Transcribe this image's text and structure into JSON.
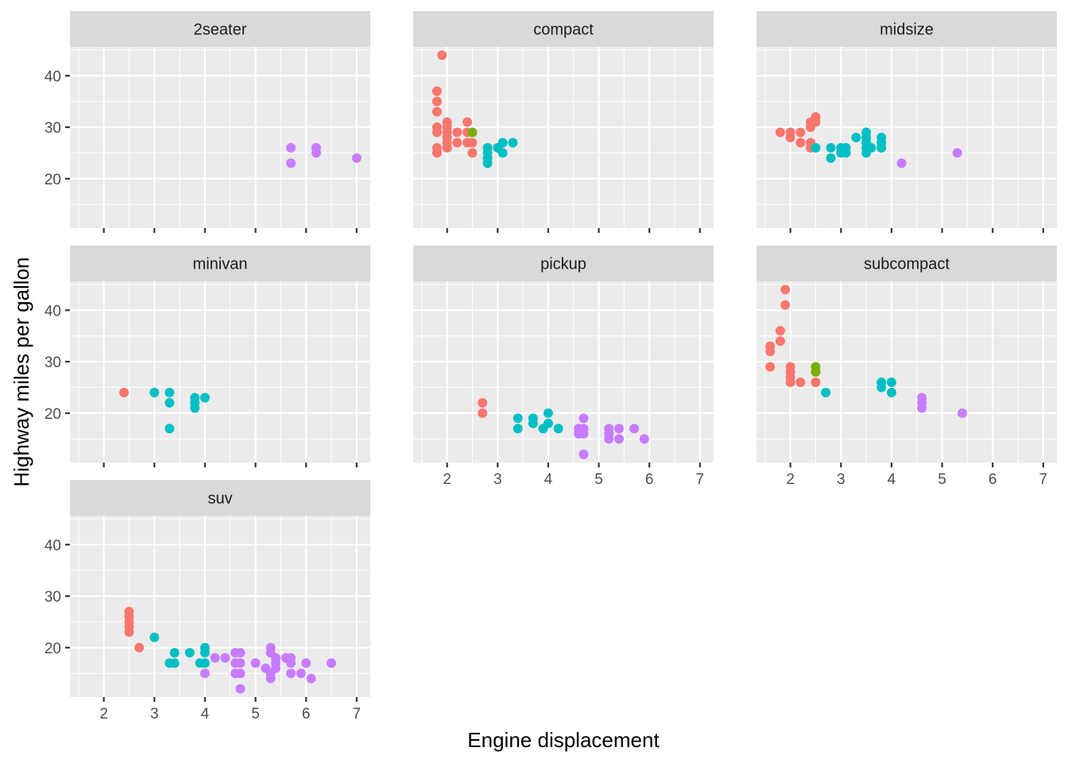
{
  "chart_data": {
    "type": "scatter",
    "facet_by": "class",
    "xlabel": "Engine displacement",
    "ylabel": "Highway miles per gallon",
    "xlim": [
      1.33,
      7.27
    ],
    "ylim": [
      10.4,
      45.6
    ],
    "x_ticks": [
      2,
      3,
      4,
      5,
      6,
      7
    ],
    "y_ticks": [
      20,
      30,
      40
    ],
    "grid": true,
    "legend": "none",
    "color_groups": {
      "4cyl": "#F8766D",
      "5cyl": "#7CAE00",
      "6cyl": "#00BFC4",
      "8cyl": "#C77CFF"
    },
    "panels": [
      {
        "name": "2seater",
        "points": [
          {
            "x": 5.7,
            "y": 26,
            "g": "8cyl"
          },
          {
            "x": 5.7,
            "y": 23,
            "g": "8cyl"
          },
          {
            "x": 6.2,
            "y": 26,
            "g": "8cyl"
          },
          {
            "x": 6.2,
            "y": 25,
            "g": "8cyl"
          },
          {
            "x": 7.0,
            "y": 24,
            "g": "8cyl"
          }
        ]
      },
      {
        "name": "compact",
        "points": [
          {
            "x": 1.9,
            "y": 44,
            "g": "4cyl"
          },
          {
            "x": 1.8,
            "y": 37,
            "g": "4cyl"
          },
          {
            "x": 1.8,
            "y": 35,
            "g": "4cyl"
          },
          {
            "x": 1.8,
            "y": 33,
            "g": "4cyl"
          },
          {
            "x": 1.8,
            "y": 30,
            "g": "4cyl"
          },
          {
            "x": 1.8,
            "y": 29,
            "g": "4cyl"
          },
          {
            "x": 1.8,
            "y": 26,
            "g": "4cyl"
          },
          {
            "x": 1.8,
            "y": 25,
            "g": "4cyl"
          },
          {
            "x": 2.0,
            "y": 31,
            "g": "4cyl"
          },
          {
            "x": 2.0,
            "y": 30,
            "g": "4cyl"
          },
          {
            "x": 2.0,
            "y": 29,
            "g": "4cyl"
          },
          {
            "x": 2.0,
            "y": 28,
            "g": "4cyl"
          },
          {
            "x": 2.0,
            "y": 27,
            "g": "4cyl"
          },
          {
            "x": 2.0,
            "y": 26,
            "g": "4cyl"
          },
          {
            "x": 2.2,
            "y": 29,
            "g": "4cyl"
          },
          {
            "x": 2.2,
            "y": 27,
            "g": "4cyl"
          },
          {
            "x": 2.4,
            "y": 31,
            "g": "4cyl"
          },
          {
            "x": 2.4,
            "y": 29,
            "g": "4cyl"
          },
          {
            "x": 2.4,
            "y": 27,
            "g": "4cyl"
          },
          {
            "x": 2.5,
            "y": 27,
            "g": "4cyl"
          },
          {
            "x": 2.5,
            "y": 25,
            "g": "4cyl"
          },
          {
            "x": 2.5,
            "y": 29,
            "g": "5cyl"
          },
          {
            "x": 2.8,
            "y": 26,
            "g": "6cyl"
          },
          {
            "x": 2.8,
            "y": 25,
            "g": "6cyl"
          },
          {
            "x": 2.8,
            "y": 24,
            "g": "6cyl"
          },
          {
            "x": 2.8,
            "y": 23,
            "g": "6cyl"
          },
          {
            "x": 3.0,
            "y": 26,
            "g": "6cyl"
          },
          {
            "x": 3.1,
            "y": 27,
            "g": "6cyl"
          },
          {
            "x": 3.1,
            "y": 25,
            "g": "6cyl"
          },
          {
            "x": 3.3,
            "y": 27,
            "g": "6cyl"
          }
        ]
      },
      {
        "name": "midsize",
        "points": [
          {
            "x": 1.8,
            "y": 29,
            "g": "4cyl"
          },
          {
            "x": 2.0,
            "y": 29,
            "g": "4cyl"
          },
          {
            "x": 2.0,
            "y": 28,
            "g": "4cyl"
          },
          {
            "x": 2.2,
            "y": 29,
            "g": "4cyl"
          },
          {
            "x": 2.2,
            "y": 27,
            "g": "4cyl"
          },
          {
            "x": 2.4,
            "y": 31,
            "g": "4cyl"
          },
          {
            "x": 2.4,
            "y": 30,
            "g": "4cyl"
          },
          {
            "x": 2.4,
            "y": 27,
            "g": "4cyl"
          },
          {
            "x": 2.4,
            "y": 26,
            "g": "4cyl"
          },
          {
            "x": 2.5,
            "y": 32,
            "g": "4cyl"
          },
          {
            "x": 2.5,
            "y": 31,
            "g": "4cyl"
          },
          {
            "x": 2.5,
            "y": 26,
            "g": "6cyl"
          },
          {
            "x": 2.8,
            "y": 26,
            "g": "6cyl"
          },
          {
            "x": 2.8,
            "y": 24,
            "g": "6cyl"
          },
          {
            "x": 3.0,
            "y": 26,
            "g": "6cyl"
          },
          {
            "x": 3.0,
            "y": 25,
            "g": "6cyl"
          },
          {
            "x": 3.1,
            "y": 26,
            "g": "6cyl"
          },
          {
            "x": 3.1,
            "y": 25,
            "g": "6cyl"
          },
          {
            "x": 3.3,
            "y": 28,
            "g": "6cyl"
          },
          {
            "x": 3.5,
            "y": 29,
            "g": "6cyl"
          },
          {
            "x": 3.5,
            "y": 28,
            "g": "6cyl"
          },
          {
            "x": 3.5,
            "y": 27,
            "g": "6cyl"
          },
          {
            "x": 3.5,
            "y": 26,
            "g": "6cyl"
          },
          {
            "x": 3.5,
            "y": 25,
            "g": "6cyl"
          },
          {
            "x": 3.6,
            "y": 26,
            "g": "6cyl"
          },
          {
            "x": 3.8,
            "y": 28,
            "g": "6cyl"
          },
          {
            "x": 3.8,
            "y": 27,
            "g": "6cyl"
          },
          {
            "x": 3.8,
            "y": 26,
            "g": "6cyl"
          },
          {
            "x": 4.2,
            "y": 23,
            "g": "8cyl"
          },
          {
            "x": 5.3,
            "y": 25,
            "g": "8cyl"
          }
        ]
      },
      {
        "name": "minivan",
        "points": [
          {
            "x": 2.4,
            "y": 24,
            "g": "4cyl"
          },
          {
            "x": 3.0,
            "y": 24,
            "g": "6cyl"
          },
          {
            "x": 3.3,
            "y": 24,
            "g": "6cyl"
          },
          {
            "x": 3.3,
            "y": 22,
            "g": "6cyl"
          },
          {
            "x": 3.3,
            "y": 17,
            "g": "6cyl"
          },
          {
            "x": 3.8,
            "y": 23,
            "g": "6cyl"
          },
          {
            "x": 3.8,
            "y": 22,
            "g": "6cyl"
          },
          {
            "x": 3.8,
            "y": 21,
            "g": "6cyl"
          },
          {
            "x": 4.0,
            "y": 23,
            "g": "6cyl"
          }
        ]
      },
      {
        "name": "pickup",
        "points": [
          {
            "x": 2.7,
            "y": 22,
            "g": "4cyl"
          },
          {
            "x": 2.7,
            "y": 20,
            "g": "4cyl"
          },
          {
            "x": 3.4,
            "y": 19,
            "g": "6cyl"
          },
          {
            "x": 3.4,
            "y": 17,
            "g": "6cyl"
          },
          {
            "x": 3.7,
            "y": 19,
            "g": "6cyl"
          },
          {
            "x": 3.7,
            "y": 18,
            "g": "6cyl"
          },
          {
            "x": 3.9,
            "y": 17,
            "g": "6cyl"
          },
          {
            "x": 4.0,
            "y": 20,
            "g": "6cyl"
          },
          {
            "x": 4.0,
            "y": 18,
            "g": "6cyl"
          },
          {
            "x": 4.2,
            "y": 17,
            "g": "6cyl"
          },
          {
            "x": 4.6,
            "y": 17,
            "g": "8cyl"
          },
          {
            "x": 4.6,
            "y": 16,
            "g": "8cyl"
          },
          {
            "x": 4.7,
            "y": 19,
            "g": "8cyl"
          },
          {
            "x": 4.7,
            "y": 17,
            "g": "8cyl"
          },
          {
            "x": 4.7,
            "y": 16,
            "g": "8cyl"
          },
          {
            "x": 4.7,
            "y": 12,
            "g": "8cyl"
          },
          {
            "x": 5.2,
            "y": 17,
            "g": "8cyl"
          },
          {
            "x": 5.2,
            "y": 16,
            "g": "8cyl"
          },
          {
            "x": 5.2,
            "y": 15,
            "g": "8cyl"
          },
          {
            "x": 5.4,
            "y": 17,
            "g": "8cyl"
          },
          {
            "x": 5.4,
            "y": 15,
            "g": "8cyl"
          },
          {
            "x": 5.7,
            "y": 17,
            "g": "8cyl"
          },
          {
            "x": 5.9,
            "y": 15,
            "g": "8cyl"
          }
        ]
      },
      {
        "name": "subcompact",
        "points": [
          {
            "x": 1.9,
            "y": 44,
            "g": "4cyl"
          },
          {
            "x": 1.9,
            "y": 41,
            "g": "4cyl"
          },
          {
            "x": 1.8,
            "y": 36,
            "g": "4cyl"
          },
          {
            "x": 1.8,
            "y": 34,
            "g": "4cyl"
          },
          {
            "x": 1.6,
            "y": 33,
            "g": "4cyl"
          },
          {
            "x": 1.6,
            "y": 32,
            "g": "4cyl"
          },
          {
            "x": 1.6,
            "y": 29,
            "g": "4cyl"
          },
          {
            "x": 2.0,
            "y": 29,
            "g": "4cyl"
          },
          {
            "x": 2.0,
            "y": 28,
            "g": "4cyl"
          },
          {
            "x": 2.0,
            "y": 27,
            "g": "4cyl"
          },
          {
            "x": 2.0,
            "y": 26,
            "g": "4cyl"
          },
          {
            "x": 2.2,
            "y": 26,
            "g": "4cyl"
          },
          {
            "x": 2.5,
            "y": 26,
            "g": "4cyl"
          },
          {
            "x": 2.5,
            "y": 29,
            "g": "5cyl"
          },
          {
            "x": 2.5,
            "y": 28,
            "g": "5cyl"
          },
          {
            "x": 2.7,
            "y": 24,
            "g": "6cyl"
          },
          {
            "x": 3.8,
            "y": 26,
            "g": "6cyl"
          },
          {
            "x": 3.8,
            "y": 25,
            "g": "6cyl"
          },
          {
            "x": 4.0,
            "y": 26,
            "g": "6cyl"
          },
          {
            "x": 4.0,
            "y": 24,
            "g": "6cyl"
          },
          {
            "x": 4.6,
            "y": 23,
            "g": "8cyl"
          },
          {
            "x": 4.6,
            "y": 22,
            "g": "8cyl"
          },
          {
            "x": 4.6,
            "y": 21,
            "g": "8cyl"
          },
          {
            "x": 5.4,
            "y": 20,
            "g": "8cyl"
          }
        ]
      },
      {
        "name": "suv",
        "points": [
          {
            "x": 2.5,
            "y": 27,
            "g": "4cyl"
          },
          {
            "x": 2.5,
            "y": 26,
            "g": "4cyl"
          },
          {
            "x": 2.5,
            "y": 25,
            "g": "4cyl"
          },
          {
            "x": 2.5,
            "y": 24,
            "g": "4cyl"
          },
          {
            "x": 2.5,
            "y": 23,
            "g": "4cyl"
          },
          {
            "x": 2.7,
            "y": 20,
            "g": "4cyl"
          },
          {
            "x": 3.0,
            "y": 22,
            "g": "6cyl"
          },
          {
            "x": 3.3,
            "y": 17,
            "g": "6cyl"
          },
          {
            "x": 3.4,
            "y": 19,
            "g": "6cyl"
          },
          {
            "x": 3.4,
            "y": 17,
            "g": "6cyl"
          },
          {
            "x": 3.7,
            "y": 19,
            "g": "6cyl"
          },
          {
            "x": 3.9,
            "y": 17,
            "g": "6cyl"
          },
          {
            "x": 4.0,
            "y": 20,
            "g": "6cyl"
          },
          {
            "x": 4.0,
            "y": 19,
            "g": "6cyl"
          },
          {
            "x": 4.0,
            "y": 17,
            "g": "6cyl"
          },
          {
            "x": 4.0,
            "y": 15,
            "g": "8cyl"
          },
          {
            "x": 4.2,
            "y": 18,
            "g": "8cyl"
          },
          {
            "x": 4.4,
            "y": 18,
            "g": "8cyl"
          },
          {
            "x": 4.6,
            "y": 19,
            "g": "8cyl"
          },
          {
            "x": 4.6,
            "y": 17,
            "g": "8cyl"
          },
          {
            "x": 4.6,
            "y": 15,
            "g": "8cyl"
          },
          {
            "x": 4.7,
            "y": 19,
            "g": "8cyl"
          },
          {
            "x": 4.7,
            "y": 17,
            "g": "8cyl"
          },
          {
            "x": 4.7,
            "y": 15,
            "g": "8cyl"
          },
          {
            "x": 4.7,
            "y": 12,
            "g": "8cyl"
          },
          {
            "x": 5.0,
            "y": 17,
            "g": "8cyl"
          },
          {
            "x": 5.2,
            "y": 16,
            "g": "8cyl"
          },
          {
            "x": 5.3,
            "y": 20,
            "g": "8cyl"
          },
          {
            "x": 5.3,
            "y": 19,
            "g": "8cyl"
          },
          {
            "x": 5.3,
            "y": 15,
            "g": "8cyl"
          },
          {
            "x": 5.3,
            "y": 14,
            "g": "8cyl"
          },
          {
            "x": 5.4,
            "y": 18,
            "g": "8cyl"
          },
          {
            "x": 5.4,
            "y": 17,
            "g": "8cyl"
          },
          {
            "x": 5.4,
            "y": 16,
            "g": "8cyl"
          },
          {
            "x": 5.6,
            "y": 18,
            "g": "8cyl"
          },
          {
            "x": 5.7,
            "y": 18,
            "g": "8cyl"
          },
          {
            "x": 5.7,
            "y": 17,
            "g": "8cyl"
          },
          {
            "x": 5.7,
            "y": 15,
            "g": "8cyl"
          },
          {
            "x": 5.9,
            "y": 15,
            "g": "8cyl"
          },
          {
            "x": 6.0,
            "y": 17,
            "g": "8cyl"
          },
          {
            "x": 6.1,
            "y": 14,
            "g": "8cyl"
          },
          {
            "x": 6.5,
            "y": 17,
            "g": "8cyl"
          }
        ]
      }
    ]
  }
}
